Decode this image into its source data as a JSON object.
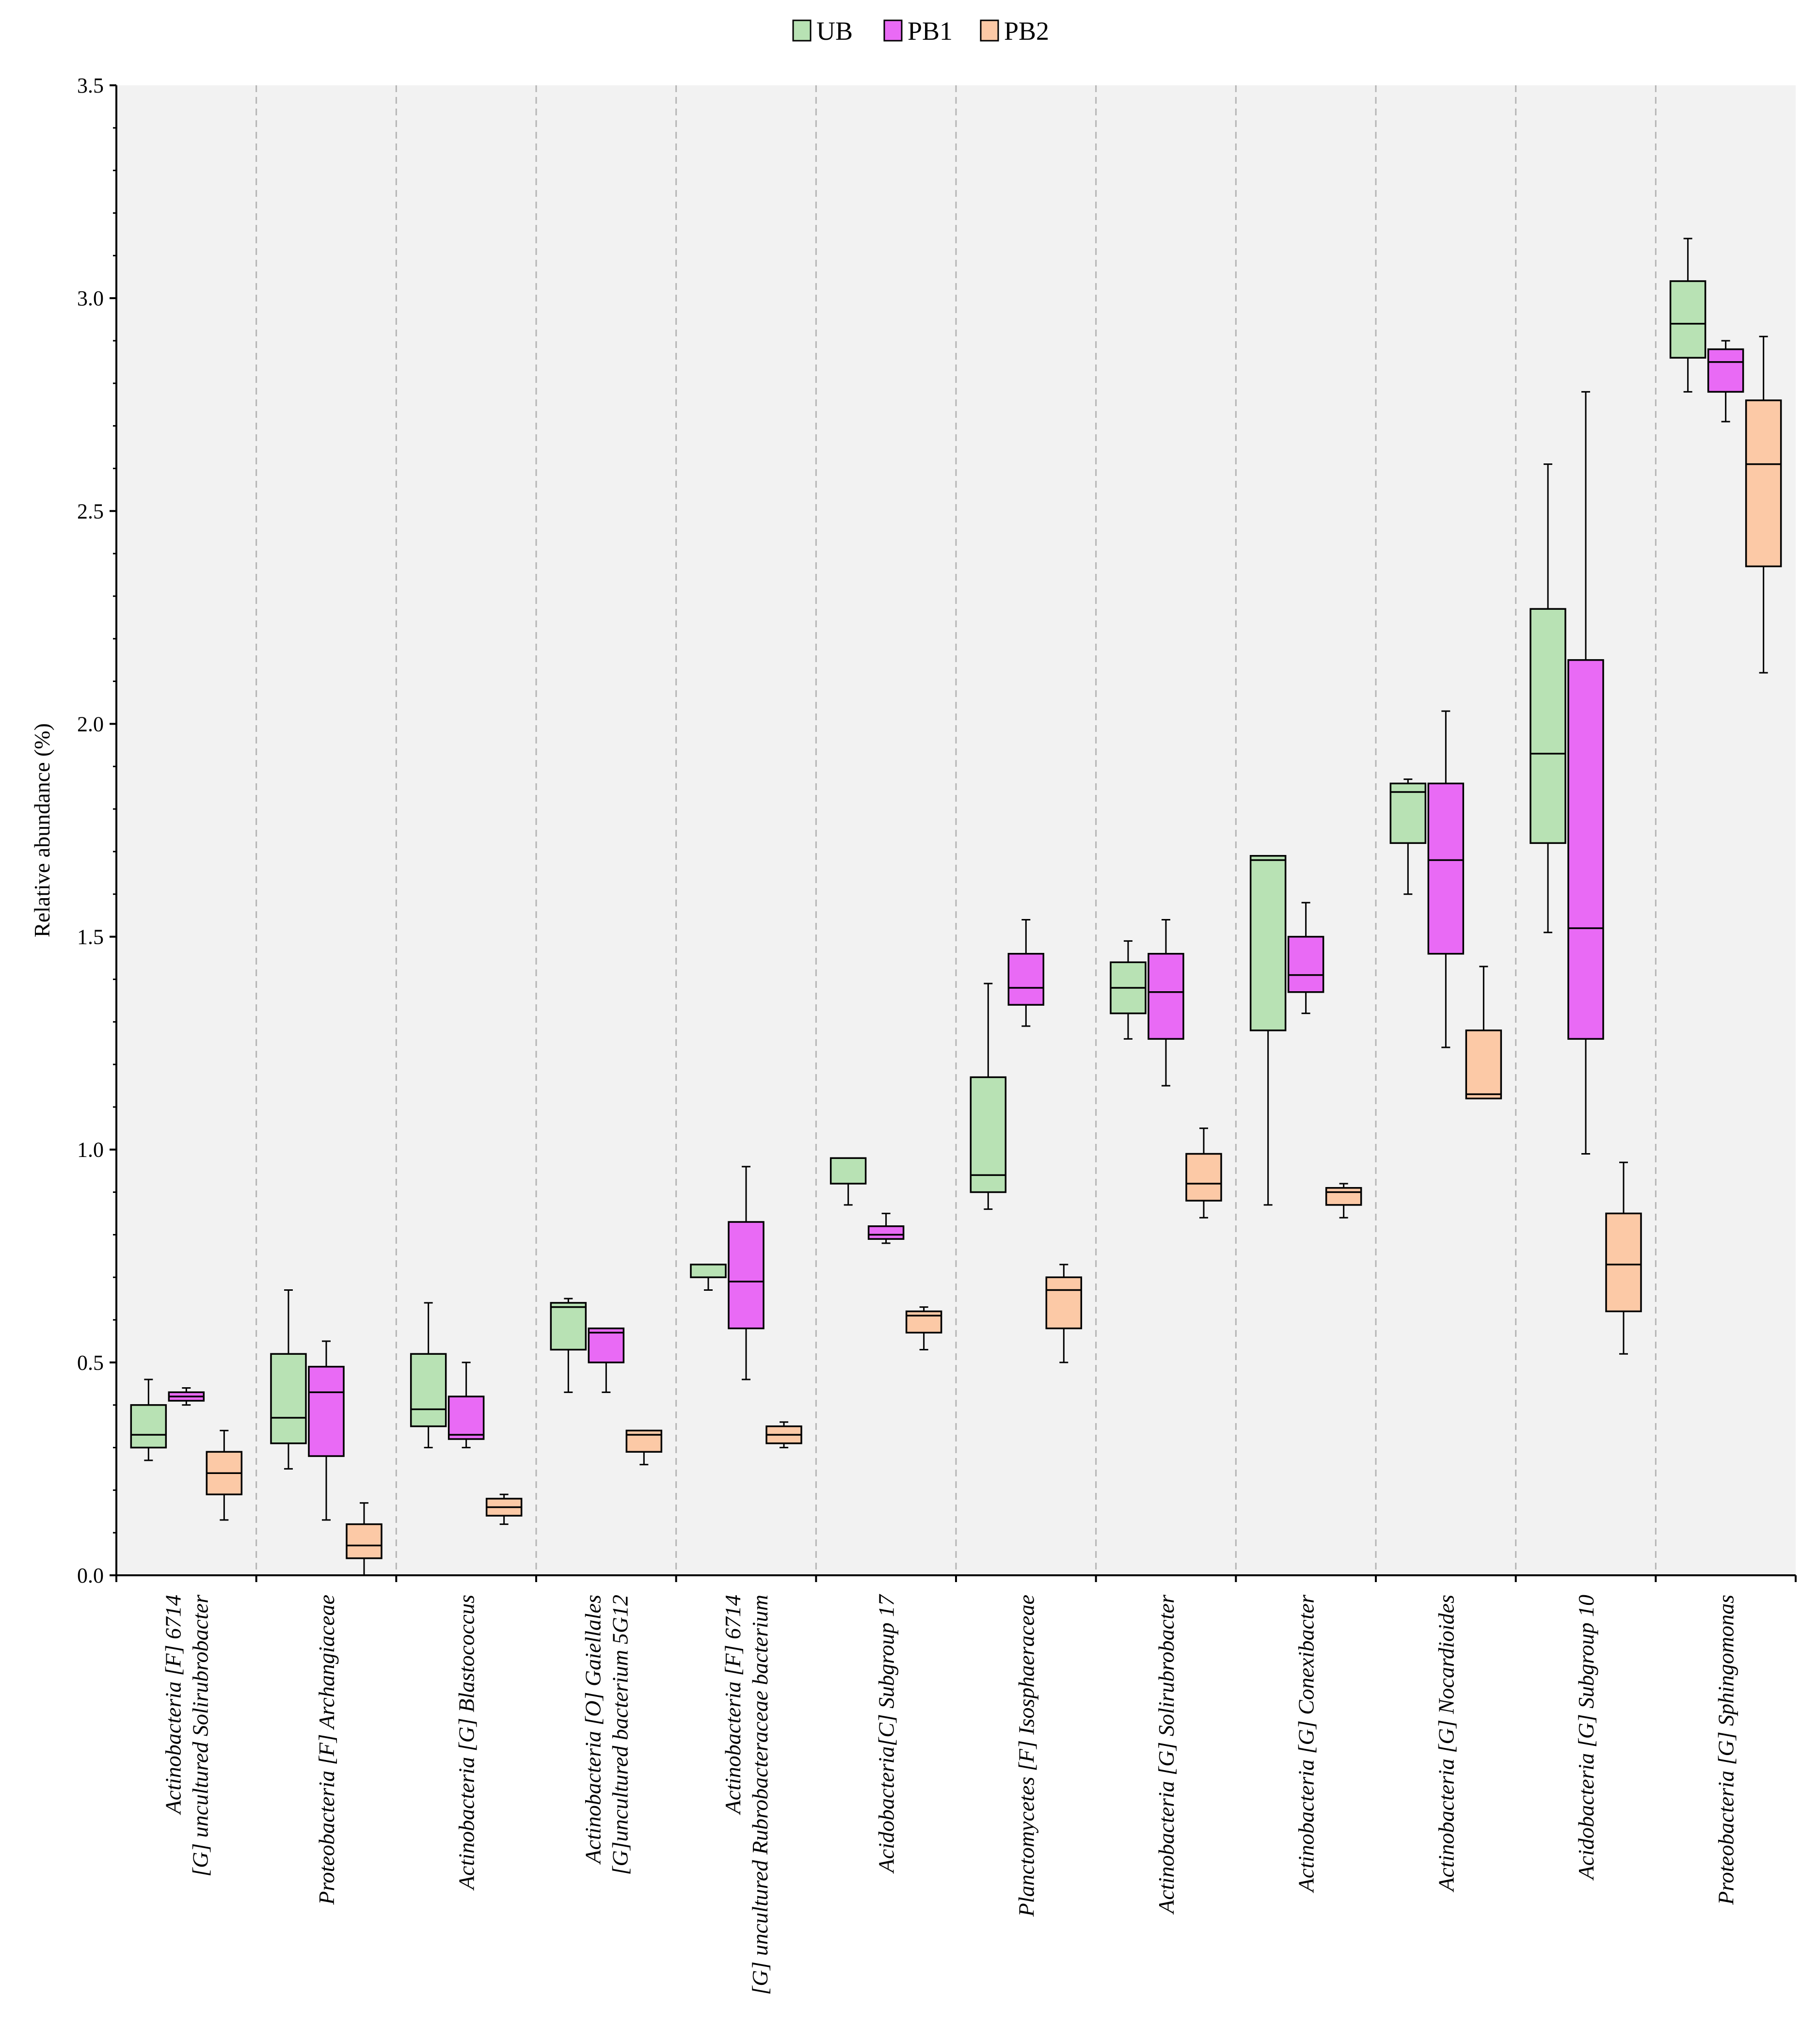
{
  "chart_data": {
    "type": "box",
    "title": "",
    "xlabel": "",
    "ylabel": "Relative abundance (%)",
    "ylim": [
      0,
      3.5
    ],
    "yticks": [
      "0.0",
      "0.5",
      "1.0",
      "1.5",
      "2.0",
      "2.5",
      "3.0",
      "3.5"
    ],
    "legend_position": "top-center",
    "series": [
      {
        "name": "UB",
        "color": "#b8e2b4"
      },
      {
        "name": "PB1",
        "color": "#e96af5"
      },
      {
        "name": "PB2",
        "color": "#fcc9a6"
      }
    ],
    "categories": [
      {
        "lines": [
          "Actinobacteria [F] 6714",
          "[G] uncultured Solirubrobacter"
        ],
        "boxes": [
          {
            "min": 0.27,
            "q1": 0.3,
            "median": 0.33,
            "q3": 0.4,
            "max": 0.46
          },
          {
            "min": 0.4,
            "q1": 0.41,
            "median": 0.42,
            "q3": 0.43,
            "max": 0.44
          },
          {
            "min": 0.13,
            "q1": 0.19,
            "median": 0.24,
            "q3": 0.29,
            "max": 0.34
          }
        ]
      },
      {
        "lines": [
          "Proteobacteria [F] Archangiaceae"
        ],
        "boxes": [
          {
            "min": 0.25,
            "q1": 0.31,
            "median": 0.37,
            "q3": 0.52,
            "max": 0.67
          },
          {
            "min": 0.13,
            "q1": 0.28,
            "median": 0.43,
            "q3": 0.49,
            "max": 0.55
          },
          {
            "min": 0.0,
            "q1": 0.04,
            "median": 0.07,
            "q3": 0.12,
            "max": 0.17
          }
        ]
      },
      {
        "lines": [
          "Actinobacteria [G] Blastococcus"
        ],
        "boxes": [
          {
            "min": 0.3,
            "q1": 0.35,
            "median": 0.39,
            "q3": 0.52,
            "max": 0.64
          },
          {
            "min": 0.3,
            "q1": 0.32,
            "median": 0.33,
            "q3": 0.42,
            "max": 0.5
          },
          {
            "min": 0.12,
            "q1": 0.14,
            "median": 0.16,
            "q3": 0.18,
            "max": 0.19
          }
        ]
      },
      {
        "lines": [
          "Actinobacteria [O] Gaiellales",
          "[G]uncultured bacterium 5G12"
        ],
        "boxes": [
          {
            "min": 0.43,
            "q1": 0.53,
            "median": 0.63,
            "q3": 0.64,
            "max": 0.65
          },
          {
            "min": 0.43,
            "q1": 0.5,
            "median": 0.57,
            "q3": 0.58,
            "max": 0.58
          },
          {
            "min": 0.26,
            "q1": 0.29,
            "median": 0.33,
            "q3": 0.34,
            "max": 0.34
          }
        ]
      },
      {
        "lines": [
          "Actinobacteria [F] 6714",
          "[G] uncultured Rubrobacteraceae bacterium"
        ],
        "boxes": [
          {
            "min": 0.67,
            "q1": 0.7,
            "median": 0.7,
            "q3": 0.73,
            "max": 0.73
          },
          {
            "min": 0.46,
            "q1": 0.58,
            "median": 0.69,
            "q3": 0.83,
            "max": 0.96
          },
          {
            "min": 0.3,
            "q1": 0.31,
            "median": 0.33,
            "q3": 0.35,
            "max": 0.36
          }
        ]
      },
      {
        "lines": [
          "Acidobacteria[C] Subgroup 17"
        ],
        "boxes": [
          {
            "min": 0.87,
            "q1": 0.92,
            "median": 0.98,
            "q3": 0.98,
            "max": 0.98
          },
          {
            "min": 0.78,
            "q1": 0.79,
            "median": 0.8,
            "q3": 0.82,
            "max": 0.85
          },
          {
            "min": 0.53,
            "q1": 0.57,
            "median": 0.61,
            "q3": 0.62,
            "max": 0.63
          }
        ]
      },
      {
        "lines": [
          "Planctomycetes [F] Isosphaeraceae"
        ],
        "boxes": [
          {
            "min": 0.86,
            "q1": 0.9,
            "median": 0.94,
            "q3": 1.17,
            "max": 1.39
          },
          {
            "min": 1.29,
            "q1": 1.34,
            "median": 1.38,
            "q3": 1.46,
            "max": 1.54
          },
          {
            "min": 0.5,
            "q1": 0.58,
            "median": 0.67,
            "q3": 0.7,
            "max": 0.73
          }
        ]
      },
      {
        "lines": [
          "Actinobacteria [G] Solirubrobacter"
        ],
        "boxes": [
          {
            "min": 1.26,
            "q1": 1.32,
            "median": 1.38,
            "q3": 1.44,
            "max": 1.49
          },
          {
            "min": 1.15,
            "q1": 1.26,
            "median": 1.37,
            "q3": 1.46,
            "max": 1.54
          },
          {
            "min": 0.84,
            "q1": 0.88,
            "median": 0.92,
            "q3": 0.99,
            "max": 1.05
          }
        ]
      },
      {
        "lines": [
          "Actinobacteria [G] Conexibacter"
        ],
        "boxes": [
          {
            "min": 0.87,
            "q1": 1.28,
            "median": 1.68,
            "q3": 1.69,
            "max": 1.69
          },
          {
            "min": 1.32,
            "q1": 1.37,
            "median": 1.41,
            "q3": 1.5,
            "max": 1.58
          },
          {
            "min": 0.84,
            "q1": 0.87,
            "median": 0.9,
            "q3": 0.91,
            "max": 0.92
          }
        ]
      },
      {
        "lines": [
          "Actinobacteria [G] Nocardioides"
        ],
        "boxes": [
          {
            "min": 1.6,
            "q1": 1.72,
            "median": 1.84,
            "q3": 1.86,
            "max": 1.87
          },
          {
            "min": 1.24,
            "q1": 1.46,
            "median": 1.68,
            "q3": 1.86,
            "max": 2.03
          },
          {
            "min": 1.12,
            "q1": 1.12,
            "median": 1.13,
            "q3": 1.28,
            "max": 1.43
          }
        ]
      },
      {
        "lines": [
          "Acidobacteria [G] Subgroup 10"
        ],
        "boxes": [
          {
            "min": 1.51,
            "q1": 1.72,
            "median": 1.93,
            "q3": 2.27,
            "max": 2.61
          },
          {
            "min": 0.99,
            "q1": 1.26,
            "median": 1.52,
            "q3": 2.15,
            "max": 2.78
          },
          {
            "min": 0.52,
            "q1": 0.62,
            "median": 0.73,
            "q3": 0.85,
            "max": 0.97
          }
        ]
      },
      {
        "lines": [
          "Proteobacteria [G] Sphingomonas"
        ],
        "boxes": [
          {
            "min": 2.78,
            "q1": 2.86,
            "median": 2.94,
            "q3": 3.04,
            "max": 3.14
          },
          {
            "min": 2.71,
            "q1": 2.78,
            "median": 2.85,
            "q3": 2.88,
            "max": 2.9
          },
          {
            "min": 2.12,
            "q1": 2.37,
            "median": 2.61,
            "q3": 2.76,
            "max": 2.91
          }
        ]
      }
    ]
  }
}
